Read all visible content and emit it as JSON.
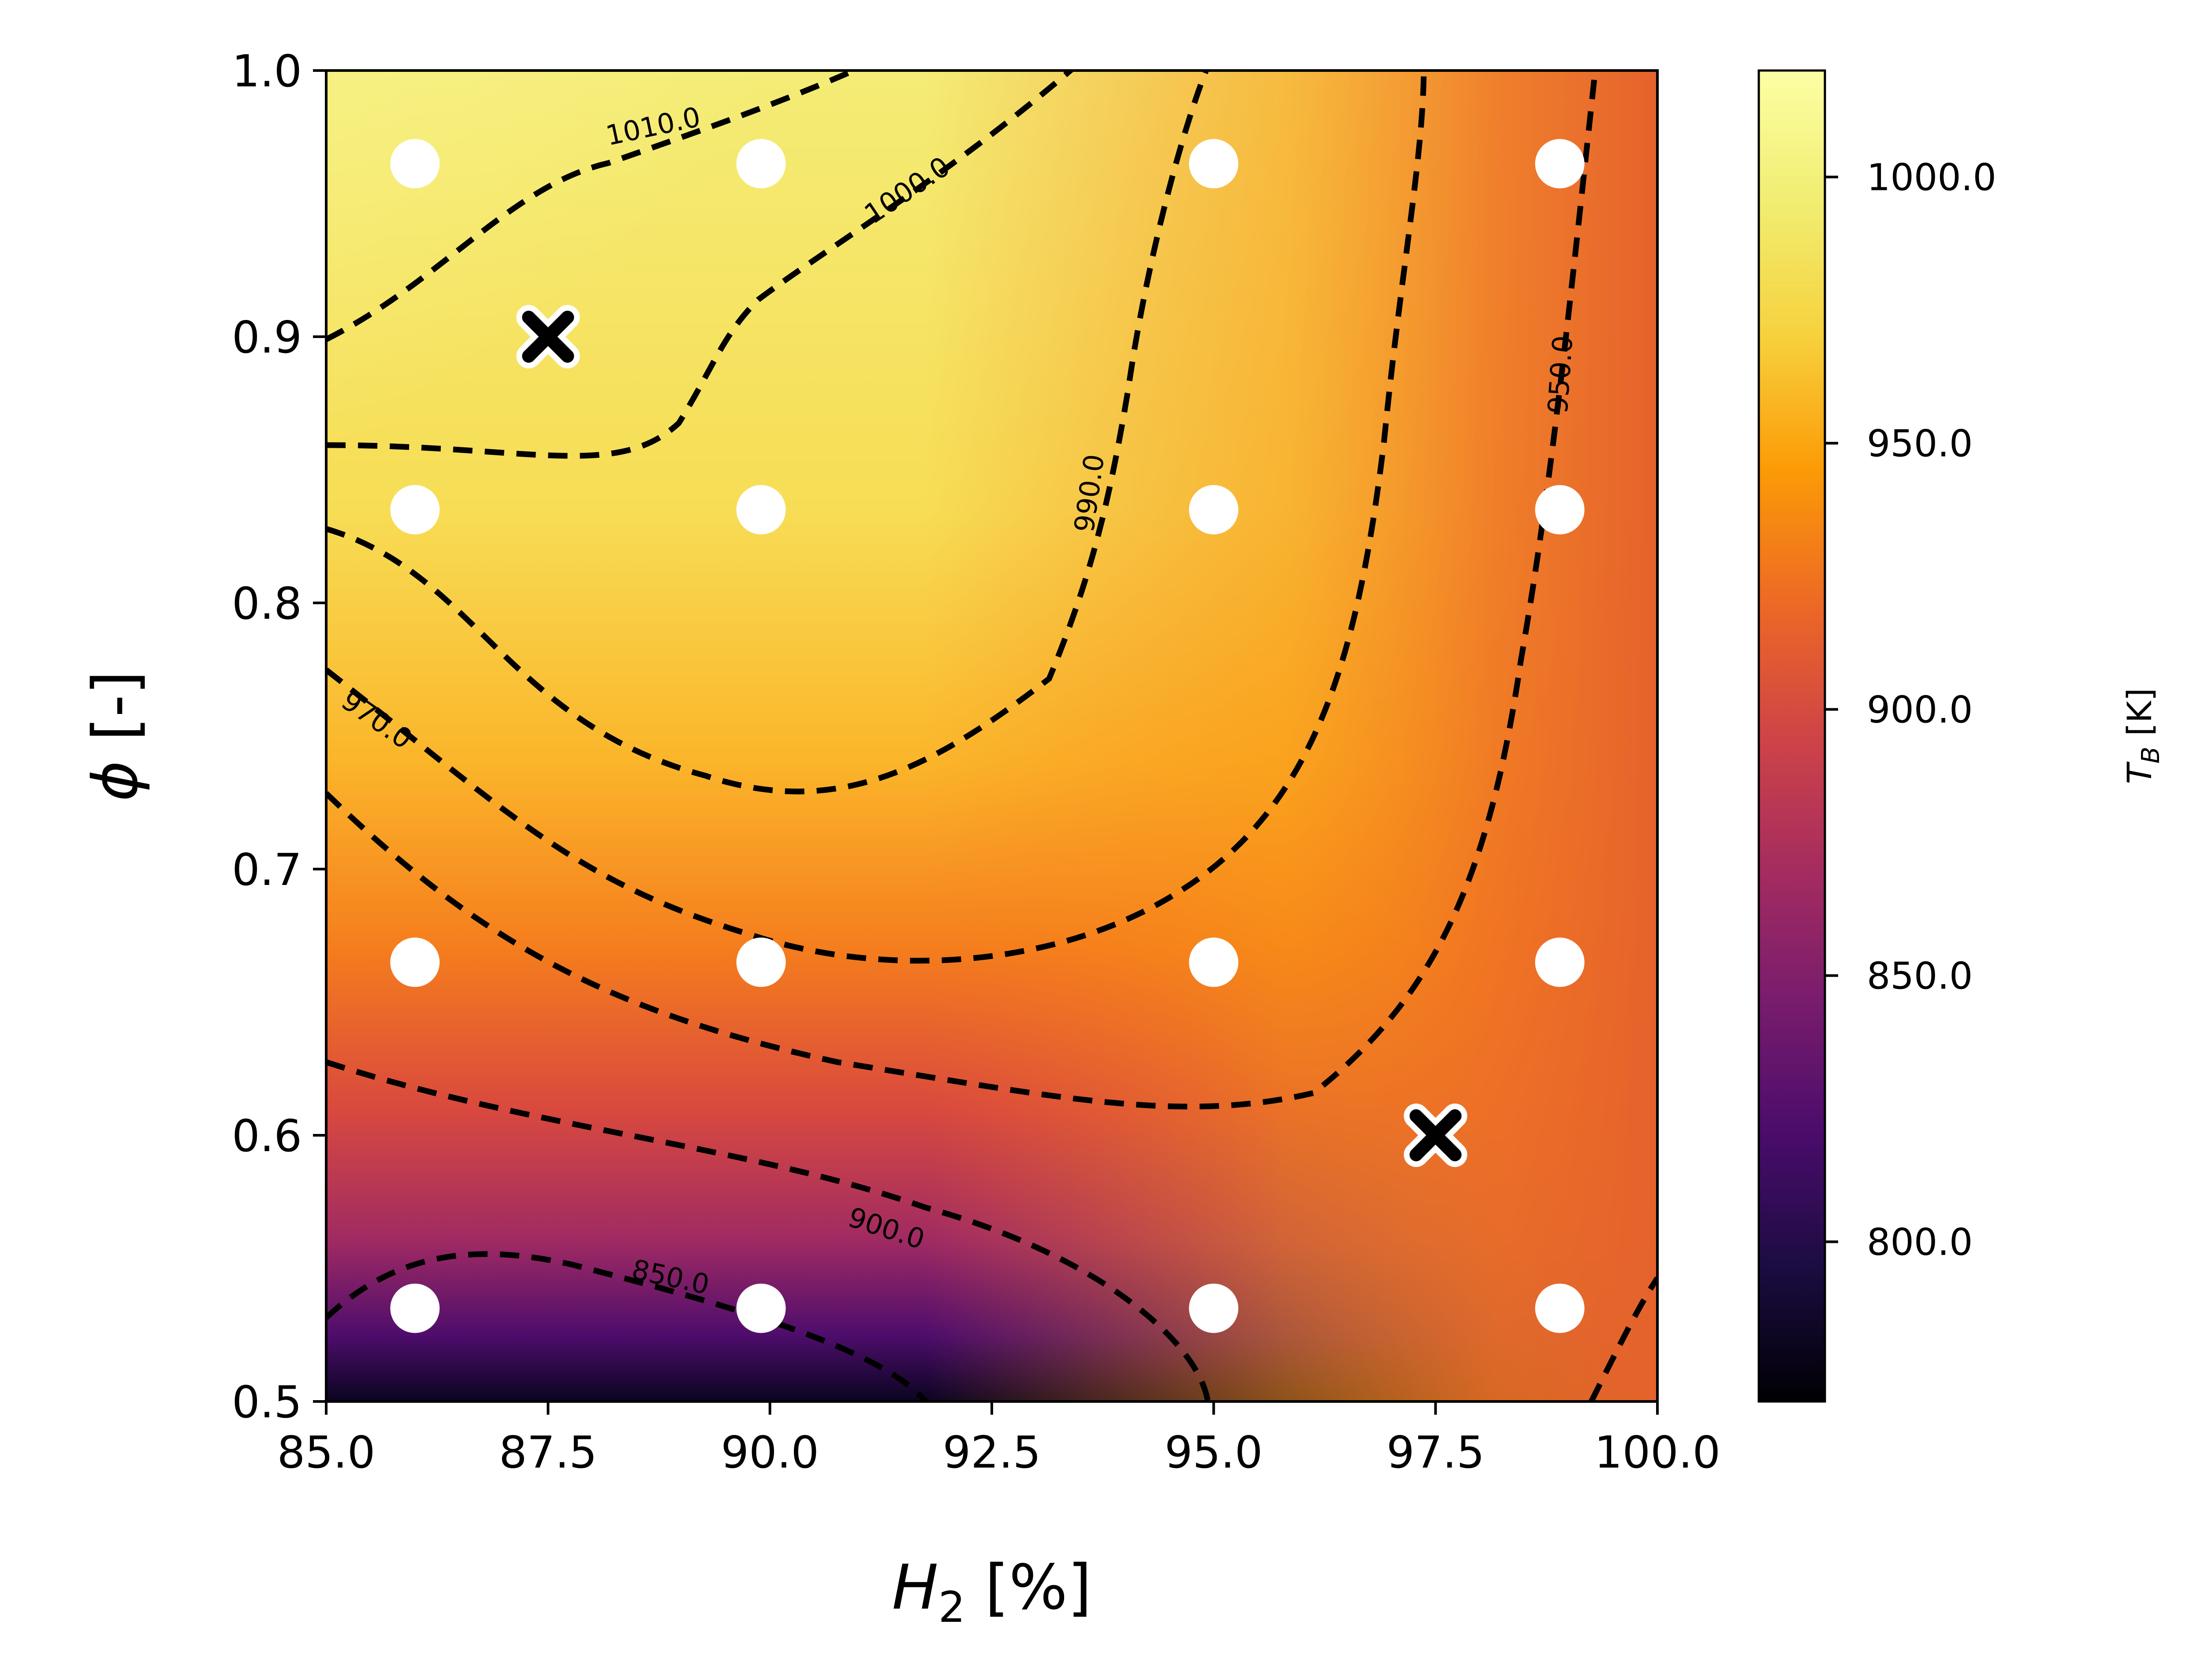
{
  "chart_data": {
    "type": "heatmap",
    "xlabel": "H₂ [%]",
    "ylabel": "ϕ [-]",
    "xlim": [
      85.0,
      100.0
    ],
    "ylim": [
      0.5,
      1.0
    ],
    "x_ticks": [
      "85.0",
      "87.5",
      "90.0",
      "92.5",
      "95.0",
      "97.5",
      "100.0"
    ],
    "y_ticks": [
      "0.5",
      "0.6",
      "0.7",
      "0.8",
      "0.9",
      "1.0"
    ],
    "colormap": "inferno",
    "colorbar": {
      "label": "T_B [K]",
      "label_main": "T",
      "label_sub": "B",
      "label_unit": " [K]",
      "range": [
        770,
        1020
      ],
      "ticks": [
        "800.0",
        "850.0",
        "900.0",
        "950.0",
        "1000.0"
      ]
    },
    "contour_labels": [
      "1010.0",
      "1000.0",
      "990.0",
      "970.0",
      "950.0",
      "900.0",
      "850.0"
    ],
    "contour_style": "black dashed",
    "sample_points": [
      {
        "x": 86.0,
        "y": 0.965
      },
      {
        "x": 89.9,
        "y": 0.965
      },
      {
        "x": 95.0,
        "y": 0.965
      },
      {
        "x": 98.9,
        "y": 0.965
      },
      {
        "x": 86.0,
        "y": 0.835
      },
      {
        "x": 89.9,
        "y": 0.835
      },
      {
        "x": 95.0,
        "y": 0.835
      },
      {
        "x": 98.9,
        "y": 0.835
      },
      {
        "x": 86.0,
        "y": 0.665
      },
      {
        "x": 89.9,
        "y": 0.665
      },
      {
        "x": 95.0,
        "y": 0.665
      },
      {
        "x": 98.9,
        "y": 0.665
      },
      {
        "x": 86.0,
        "y": 0.535
      },
      {
        "x": 89.9,
        "y": 0.535
      },
      {
        "x": 95.0,
        "y": 0.535
      },
      {
        "x": 98.9,
        "y": 0.535
      }
    ],
    "markers": [
      {
        "x": 87.5,
        "y": 0.9
      },
      {
        "x": 97.5,
        "y": 0.6
      }
    ],
    "point_color": "#ffffff",
    "marker_color": "#000000"
  }
}
